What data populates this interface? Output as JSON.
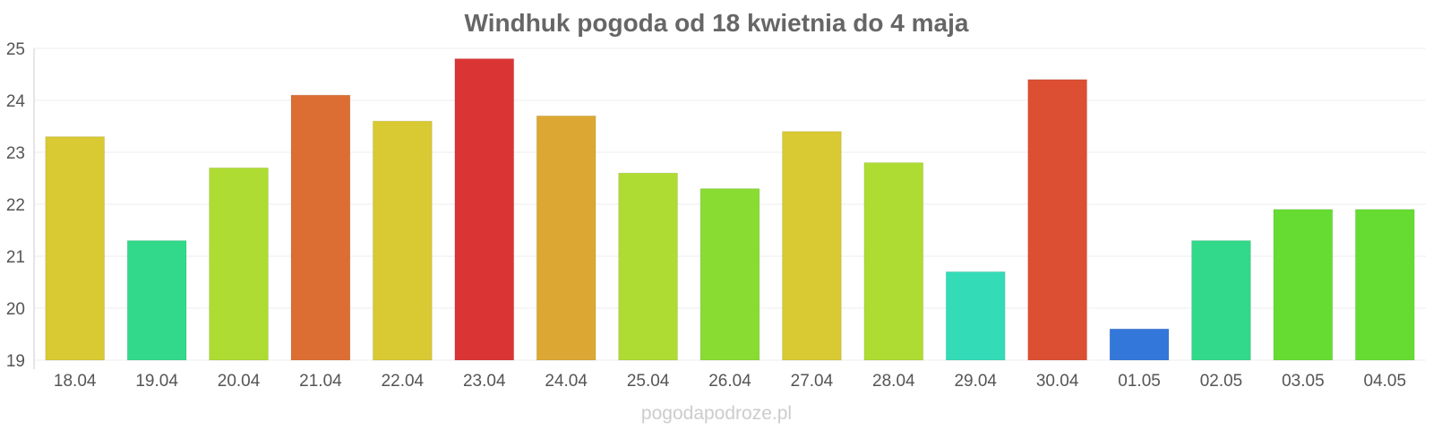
{
  "chart_data": {
    "type": "bar",
    "title": "Windhuk pogoda od 18 kwietnia do 4 maja",
    "categories": [
      "18.04",
      "19.04",
      "20.04",
      "21.04",
      "22.04",
      "23.04",
      "24.04",
      "25.04",
      "26.04",
      "27.04",
      "28.04",
      "29.04",
      "30.04",
      "01.05",
      "02.05",
      "03.05",
      "04.05"
    ],
    "values": [
      23.3,
      21.3,
      22.7,
      24.1,
      23.6,
      24.8,
      23.7,
      22.6,
      22.3,
      23.4,
      22.8,
      20.7,
      24.4,
      19.6,
      21.3,
      21.9,
      21.9
    ],
    "colors": [
      "#d9c932",
      "#33d98a",
      "#aedc32",
      "#dc6e33",
      "#d9c932",
      "#db3434",
      "#dca733",
      "#aedc32",
      "#88dc32",
      "#d9c932",
      "#aedc32",
      "#33dbb7",
      "#dc4f33",
      "#3477db",
      "#33d98a",
      "#66dc32",
      "#66dc32"
    ],
    "ylim": [
      19,
      25
    ],
    "yticks": [
      "19",
      "20",
      "21",
      "22",
      "23",
      "24",
      "25"
    ],
    "xlabel": "",
    "ylabel": "",
    "grid": true
  },
  "watermark": "pogodapodroze.pl"
}
